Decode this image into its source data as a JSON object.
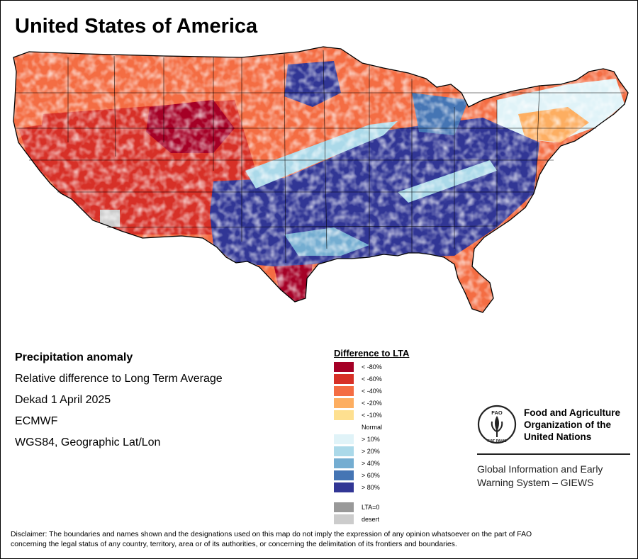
{
  "map": {
    "title": "United States of America",
    "region": "contiguous-united-states",
    "palette": {
      "lt80": "#a50026",
      "lt60": "#d73027",
      "lt40": "#f46d43",
      "lt20": "#fdae61",
      "lt10": "#fee090",
      "normal": "#ffffff",
      "gt10": "#e0f3f8",
      "gt20": "#abd9e9",
      "gt40": "#74add1",
      "gt60": "#4575b4",
      "gt80": "#313695",
      "lta0": "#999999",
      "desert": "#cccccc",
      "border": "#000000"
    }
  },
  "info": {
    "line1": "Precipitation anomaly",
    "line2": "Relative difference to Long Term Average",
    "line3": "Dekad 1 April 2025",
    "line4": "ECMWF",
    "line5": "WGS84, Geographic Lat/Lon"
  },
  "legend": {
    "title": "Difference to LTA",
    "items": [
      {
        "label": "< -80%",
        "color": "#a50026"
      },
      {
        "label": "< -60%",
        "color": "#d73027"
      },
      {
        "label": "< -40%",
        "color": "#f46d43"
      },
      {
        "label": "< -20%",
        "color": "#fdae61"
      },
      {
        "label": "< -10%",
        "color": "#fee090"
      },
      {
        "label": "Normal",
        "color": "#ffffff"
      },
      {
        "label": "> 10%",
        "color": "#e0f3f8"
      },
      {
        "label": "> 20%",
        "color": "#abd9e9"
      },
      {
        "label": "> 40%",
        "color": "#74add1"
      },
      {
        "label": "> 60%",
        "color": "#4575b4"
      },
      {
        "label": "> 80%",
        "color": "#313695"
      },
      {
        "label": "LTA=0",
        "color": "#999999"
      },
      {
        "label": "desert",
        "color": "#cccccc"
      }
    ]
  },
  "org": {
    "name_line1": "Food and Agriculture",
    "name_line2": "Organization of the",
    "name_line3": "United Nations",
    "logo_text": "FAO",
    "motto": "FIAT PANIS",
    "system_line1": "Global Information and Early",
    "system_line2": "Warning System – GIEWS"
  },
  "disclaimer": {
    "line1": "Disclaimer: The boundaries and names shown and the designations used on this map do not imply the expression of any opinion whatsoever on the part of FAO",
    "line2": "concerning the legal status of any country, territory, area or of its authorities, or concerning the delimitation of its frontiers and boundaries."
  }
}
